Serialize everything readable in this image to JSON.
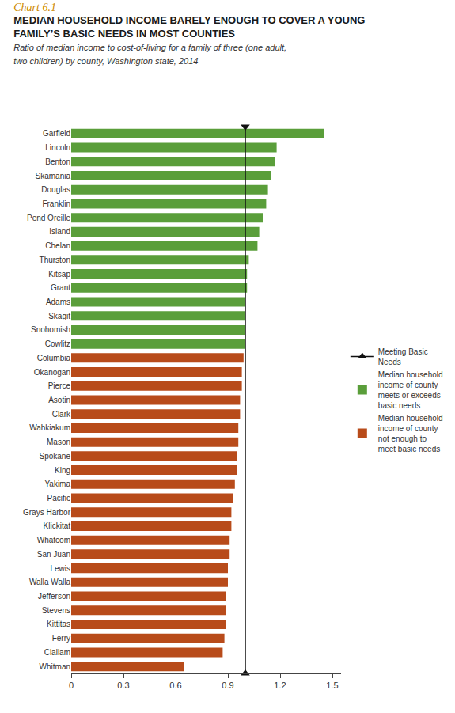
{
  "chart_data": {
    "type": "bar",
    "orientation": "horizontal",
    "chart_label": "Chart 6.1",
    "title": "MEDIAN HOUSEHOLD INCOME BARELY ENOUGH TO COVER A YOUNG\nFAMILY’S BASIC NEEDS IN MOST COUNTIES",
    "subtitle": "Ratio of median income to cost-of-living for a family of three (one adult,\ntwo children) by county, Washington state, 2014",
    "categories": [
      "Garfield",
      "Lincoln",
      "Benton",
      "Skamania",
      "Douglas",
      "Franklin",
      "Pend Oreille",
      "Island",
      "Chelan",
      "Thurston",
      "Kitsap",
      "Grant",
      "Adams",
      "Skagit",
      "Snohomish",
      "Cowlitz",
      "Columbia",
      "Okanogan",
      "Pierce",
      "Asotin",
      "Clark",
      "Wahkiakum",
      "Mason",
      "Spokane",
      "King",
      "Yakima",
      "Pacific",
      "Grays Harbor",
      "Klickitat",
      "Whatcom",
      "San Juan",
      "Lewis",
      "Walla Walla",
      "Jefferson",
      "Stevens",
      "Kittitas",
      "Ferry",
      "Clallam",
      "Whitman"
    ],
    "series": [
      {
        "name": "Median household\nincome of county\nmeets or exceeds\nbasic needs",
        "color": "#5a9e3a",
        "values": [
          1.45,
          1.18,
          1.17,
          1.15,
          1.13,
          1.12,
          1.1,
          1.08,
          1.07,
          1.02,
          1.01,
          1.01,
          1.0,
          1.0,
          1.0,
          1.0,
          null,
          null,
          null,
          null,
          null,
          null,
          null,
          null,
          null,
          null,
          null,
          null,
          null,
          null,
          null,
          null,
          null,
          null,
          null,
          null,
          null,
          null,
          null
        ]
      },
      {
        "name": "Median household\nincome of county\nnot enough to\nmeet basic needs",
        "color": "#b84b1a",
        "values": [
          null,
          null,
          null,
          null,
          null,
          null,
          null,
          null,
          null,
          null,
          null,
          null,
          null,
          null,
          null,
          null,
          0.99,
          0.98,
          0.98,
          0.97,
          0.97,
          0.96,
          0.96,
          0.95,
          0.95,
          0.94,
          0.93,
          0.92,
          0.92,
          0.91,
          0.91,
          0.9,
          0.9,
          0.89,
          0.89,
          0.89,
          0.88,
          0.87,
          0.65
        ]
      }
    ],
    "threshold": {
      "value": 1.0,
      "name": "Meeting Basic\nNeeds",
      "color": "#111111"
    },
    "xlim": [
      0,
      1.55
    ],
    "xticks": [
      0,
      0.3,
      0.6,
      0.9,
      1.2,
      1.5
    ],
    "legend": "right",
    "grid": false
  }
}
